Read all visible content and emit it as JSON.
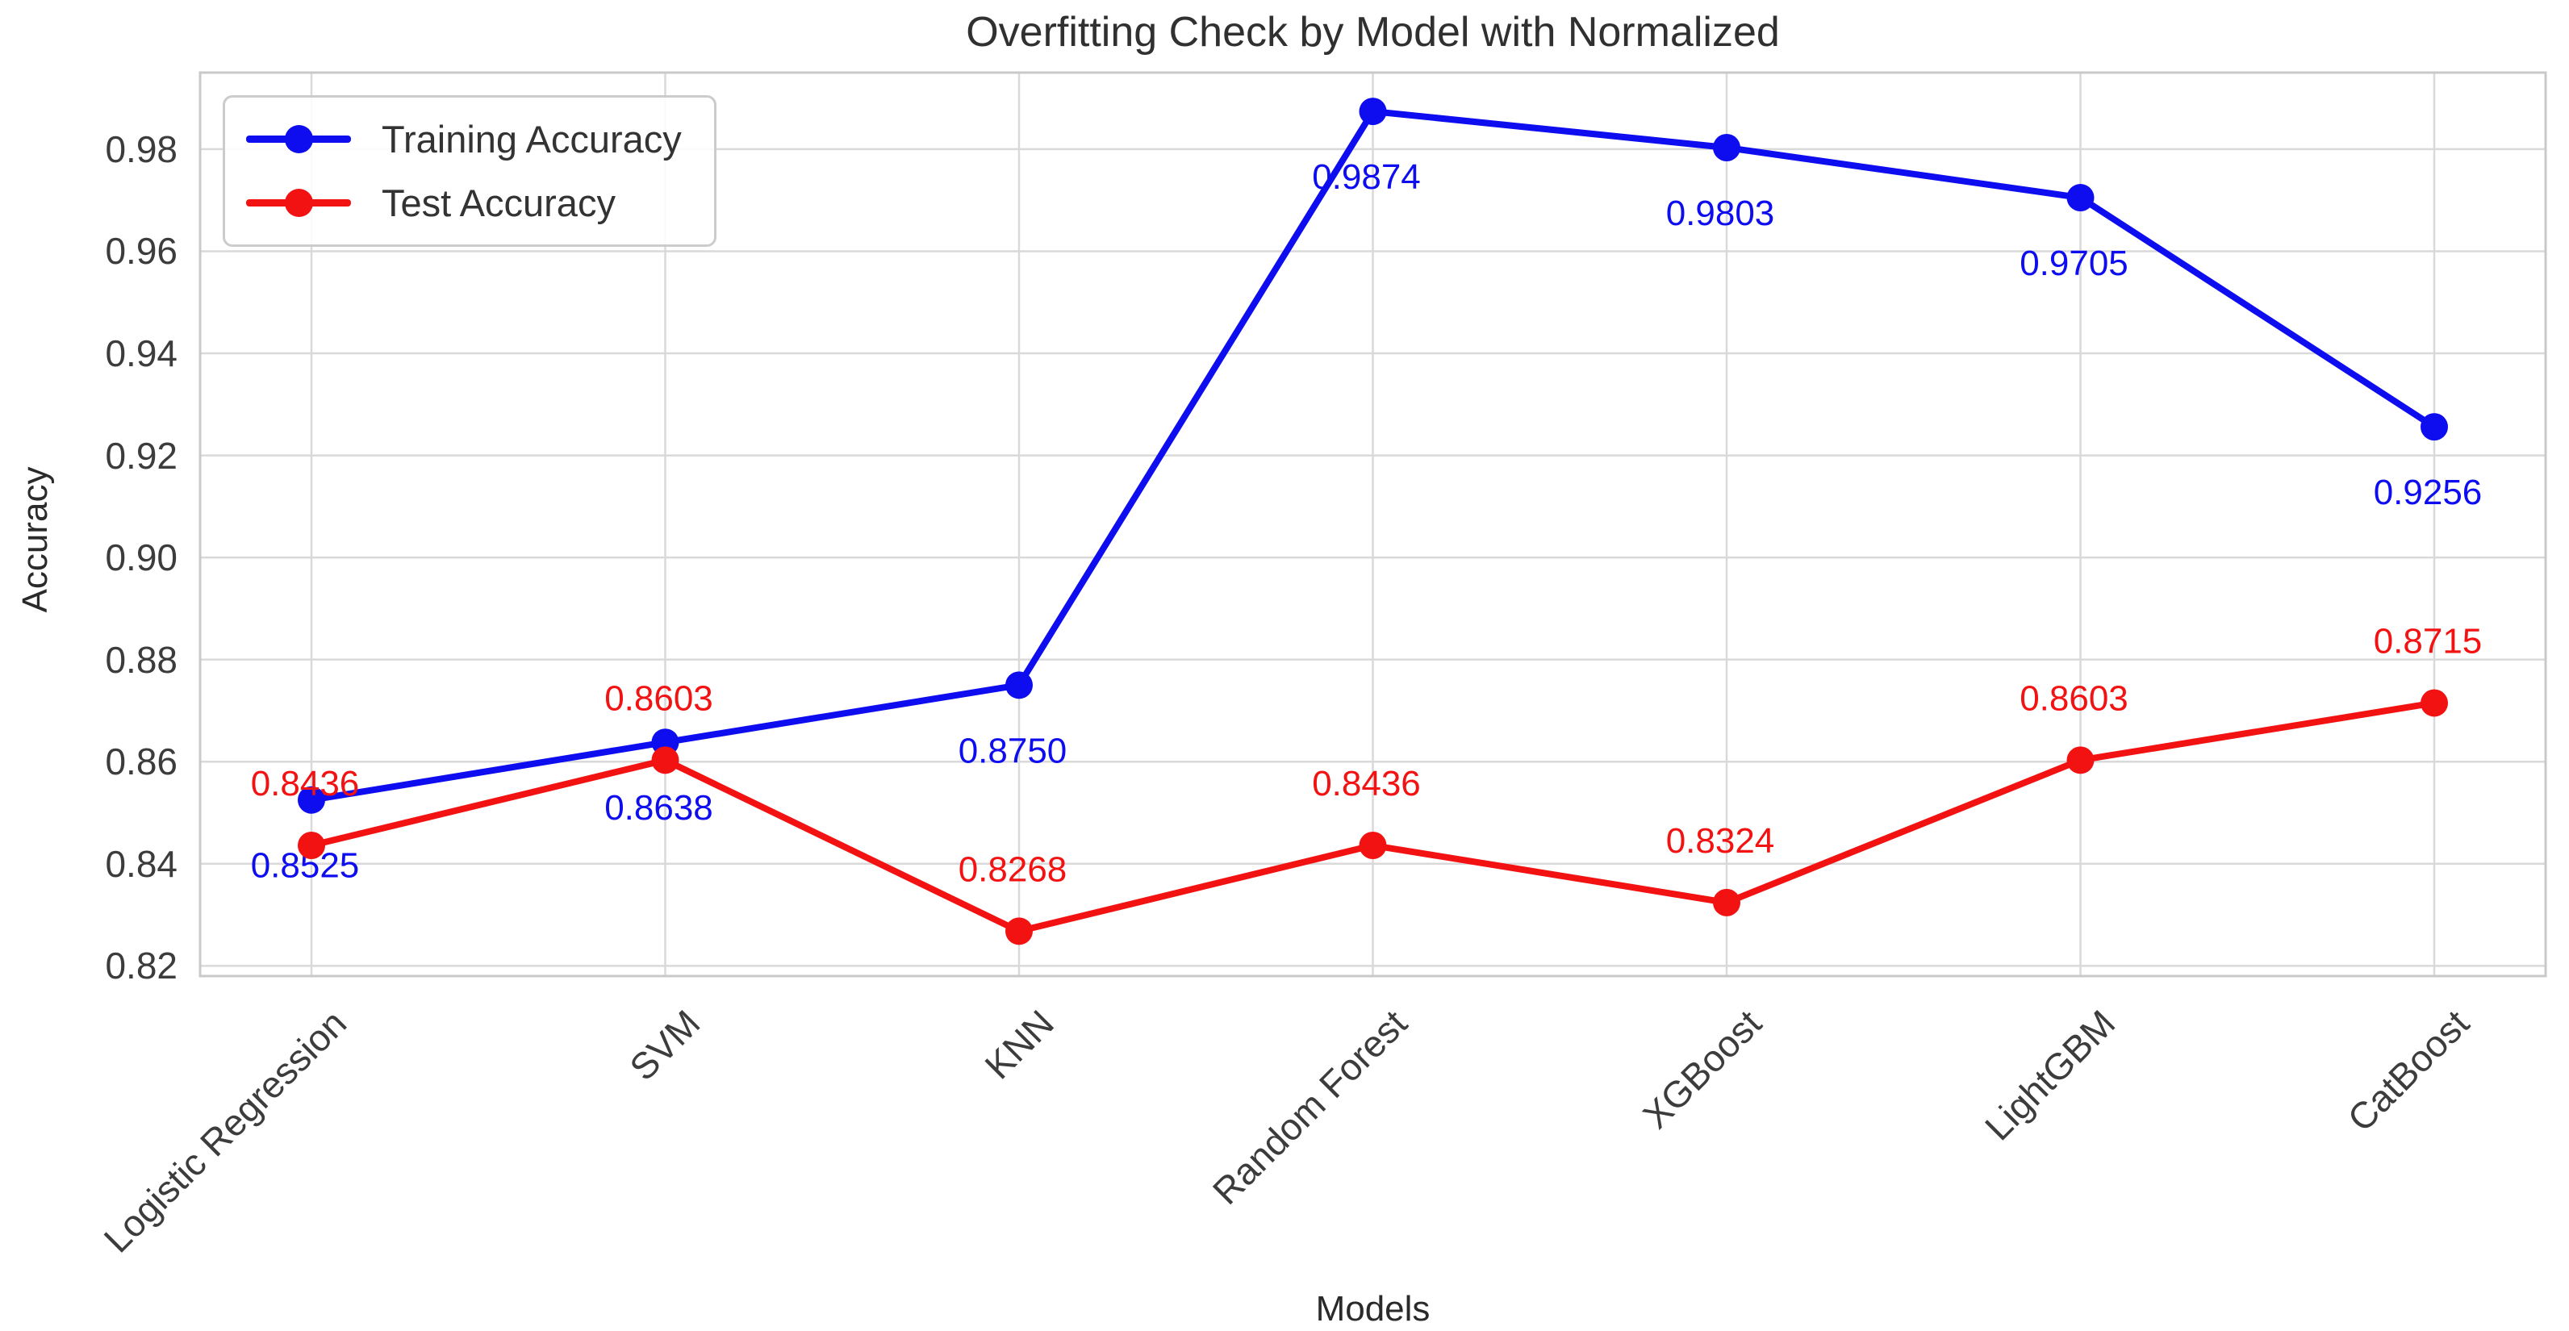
{
  "chart_data": {
    "type": "line",
    "title": "Overfitting Check by Model with Normalized",
    "xlabel": "Models",
    "ylabel": "Accuracy",
    "categories": [
      "Logistic Regression",
      "SVM",
      "KNN",
      "Random Forest",
      "XGBoost",
      "LightGBM",
      "CatBoost"
    ],
    "series": [
      {
        "name": "Training Accuracy",
        "color": "#0d0df0",
        "values": [
          0.8525,
          0.8638,
          0.875,
          0.9874,
          0.9803,
          0.9705,
          0.9256
        ],
        "point_labels": [
          "0.8525",
          "0.8638",
          "0.8750",
          "0.9874",
          "0.9803",
          "0.9705",
          "0.9256"
        ],
        "label_side": "below"
      },
      {
        "name": "Test Accuracy",
        "color": "#f31212",
        "values": [
          0.8436,
          0.8603,
          0.8268,
          0.8436,
          0.8324,
          0.8603,
          0.8715
        ],
        "point_labels": [
          "0.8436",
          "0.8603",
          "0.8268",
          "0.8436",
          "0.8324",
          "0.8603",
          "0.8715"
        ],
        "label_side": "above"
      }
    ],
    "yticks": [
      "0.82",
      "0.84",
      "0.86",
      "0.88",
      "0.90",
      "0.92",
      "0.94",
      "0.96",
      "0.98"
    ],
    "ylim": [
      0.818,
      0.995
    ],
    "grid": true,
    "legend_position": "upper left",
    "marker": "circle"
  },
  "colors": {
    "grid": "#d9d9d9",
    "spine": "#c9c9c9",
    "tick_label": "#3c3c3c"
  }
}
